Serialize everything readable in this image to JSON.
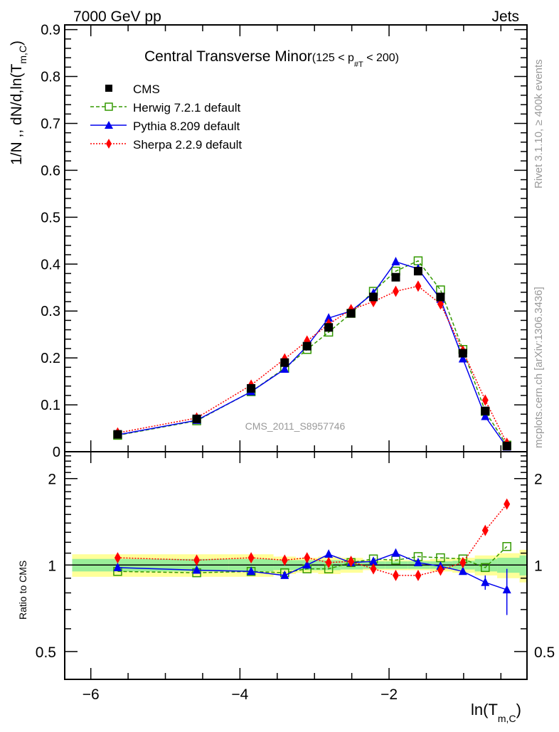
{
  "chart_data": {
    "type": "line",
    "header_left": "7000 GeV pp",
    "header_right": "Jets",
    "title": "Central Transverse Minor",
    "title_suffix_pre": "(125 < p",
    "title_suffix_sub": "#T",
    "title_suffix_post": "  < 200)",
    "ylabel_main": "1/N ,, dN/d,ln(T",
    "ylabel_main_sub": "m,C",
    "ylabel_main_post": ")",
    "ylabel_ratio": "Ratio to CMS",
    "xlabel": "ln(T",
    "xlabel_sub": "m,C",
    "xlabel_post": ")",
    "side_text_top": "Rivet 3.1.10, ≥ 400k events",
    "side_text_bottom": "mcplots.cern.ch [arXiv:1306.3436]",
    "watermark": "CMS_2011_S8957746",
    "xlim": [
      -6.35,
      -0.15
    ],
    "ylim_main": [
      0,
      0.91
    ],
    "ylim_ratio": [
      0.4,
      2.48
    ],
    "xticks": [
      -6,
      -4,
      -2
    ],
    "xtick_labels": [
      "−6",
      "−4",
      "−2"
    ],
    "yticks_main": [
      0,
      0.1,
      0.2,
      0.3,
      0.4,
      0.5,
      0.6,
      0.7,
      0.8,
      0.9
    ],
    "ytick_labels_main": [
      "0",
      "0.1",
      "0.2",
      "0.3",
      "0.4",
      "0.5",
      "0.6",
      "0.7",
      "0.8",
      "0.9"
    ],
    "yticks_ratio": [
      0.5,
      1,
      2
    ],
    "ytick_labels_ratio": [
      "0.5",
      "1",
      "2"
    ],
    "x": [
      -5.64,
      -4.58,
      -3.85,
      -3.4,
      -3.1,
      -2.81,
      -2.51,
      -2.21,
      -1.91,
      -1.61,
      -1.31,
      -1.01,
      -0.71,
      -0.42
    ],
    "bin_edges": [
      -6.25,
      -4.15,
      -3.55,
      -3.25,
      -2.95,
      -2.65,
      -2.35,
      -2.05,
      -1.75,
      -1.45,
      -1.15,
      -0.85,
      -0.55,
      -0.25
    ],
    "band_green": [
      0.05,
      0.05,
      0.04,
      0.04,
      0.04,
      0.035,
      0.03,
      0.03,
      0.03,
      0.03,
      0.035,
      0.05,
      0.06,
      0.08
    ],
    "band_yellow": [
      0.09,
      0.09,
      0.07,
      0.06,
      0.07,
      0.06,
      0.04,
      0.04,
      0.04,
      0.05,
      0.06,
      0.08,
      0.1,
      0.13
    ],
    "legend_position": "top-left",
    "series": [
      {
        "name": "CMS",
        "color": "#000000",
        "marker": "square-filled",
        "line": "none",
        "values": [
          0.037,
          0.07,
          0.135,
          0.19,
          0.225,
          0.265,
          0.295,
          0.33,
          0.372,
          0.385,
          0.33,
          0.21,
          0.087,
          0.012
        ],
        "ratio": [
          1,
          1,
          1,
          1,
          1,
          1,
          1,
          1,
          1,
          1,
          1,
          1,
          1,
          1
        ]
      },
      {
        "name": "Herwig 7.2.1 default",
        "color": "#339900",
        "marker": "square-open",
        "line": "dashed",
        "values": [
          0.035,
          0.066,
          0.128,
          0.178,
          0.218,
          0.255,
          0.295,
          0.342,
          0.385,
          0.407,
          0.345,
          0.218,
          0.086,
          0.014
        ],
        "ratio": [
          0.95,
          0.94,
          0.95,
          0.94,
          0.97,
          0.97,
          1.02,
          1.05,
          1.04,
          1.07,
          1.06,
          1.05,
          0.98,
          1.16
        ]
      },
      {
        "name": "Pythia 8.209 default",
        "color": "#0000ee",
        "marker": "triangle",
        "line": "solid",
        "values": [
          0.036,
          0.067,
          0.128,
          0.176,
          0.225,
          0.285,
          0.3,
          0.338,
          0.405,
          0.39,
          0.325,
          0.198,
          0.075,
          0.01
        ],
        "ratio": [
          0.98,
          0.96,
          0.95,
          0.92,
          1.0,
          1.09,
          1.02,
          1.03,
          1.1,
          1.02,
          0.99,
          0.95,
          0.87,
          0.82
        ],
        "ratio_err": [
          0.02,
          0.02,
          0.02,
          0.02,
          0.02,
          0.03,
          0.02,
          0.02,
          0.03,
          0.02,
          0.02,
          0.02,
          0.05,
          0.15
        ]
      },
      {
        "name": "Sherpa 2.2.9 default",
        "color": "#ff0000",
        "marker": "diamond",
        "line": "dotted",
        "values": [
          0.04,
          0.072,
          0.142,
          0.198,
          0.236,
          0.272,
          0.303,
          0.32,
          0.342,
          0.353,
          0.315,
          0.215,
          0.11,
          0.018
        ],
        "ratio": [
          1.06,
          1.04,
          1.06,
          1.04,
          1.06,
          1.02,
          1.03,
          0.97,
          0.92,
          0.92,
          0.96,
          1.02,
          1.32,
          1.63
        ]
      }
    ]
  }
}
